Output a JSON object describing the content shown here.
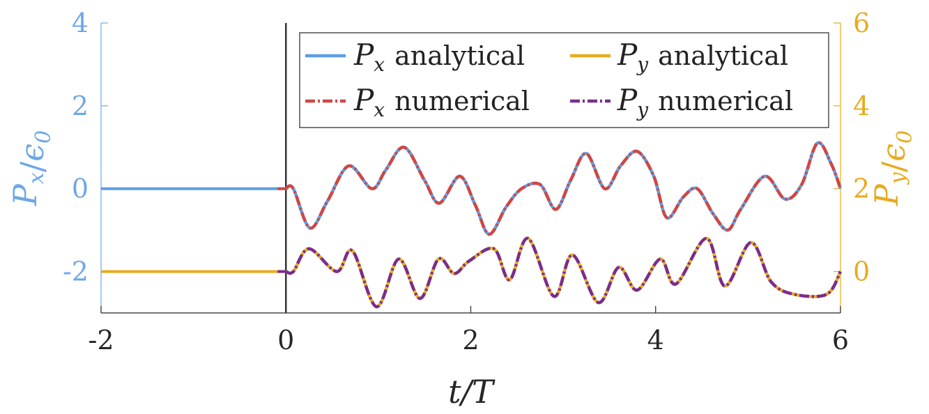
{
  "chart_data": {
    "type": "line",
    "colors": {
      "left_axis": "#6ea8e6",
      "right_axis": "#e8ab1f",
      "bottom_axis": "#262626",
      "px_analytical": "#5b9ee6",
      "px_numerical": "#cf4744",
      "py_analytical": "#e8ab1f",
      "py_numerical": "#7a2d8c",
      "marker_line": "#333333"
    },
    "x_axis": {
      "label": "t/T",
      "range": [
        -2,
        6
      ],
      "ticks": [
        -2,
        0,
        2,
        4,
        6
      ],
      "tick_labels": [
        "-2",
        "0",
        "2",
        "4",
        "6"
      ]
    },
    "y_left": {
      "label": "P_x/ϵ_0",
      "range": [
        -3,
        4
      ],
      "ticks": [
        -2,
        0,
        2,
        4
      ],
      "tick_labels": [
        "-2",
        "0",
        "2",
        "4"
      ]
    },
    "y_right": {
      "label": "P_y/ϵ_0",
      "range": [
        -1,
        6
      ],
      "ticks": [
        0,
        2,
        4,
        6
      ],
      "tick_labels": [
        "0",
        "2",
        "4",
        "6"
      ]
    },
    "vertical_line_x": 0,
    "legend": {
      "position": "top-right",
      "entries": [
        {
          "symbol": "P",
          "sub": "x",
          "text": "analytical",
          "style": "solid",
          "series": "px_analytical"
        },
        {
          "symbol": "P",
          "sub": "y",
          "text": "analytical",
          "style": "solid",
          "series": "py_analytical"
        },
        {
          "symbol": "P",
          "sub": "x",
          "text": "numerical",
          "style": "dashdot",
          "series": "px_numerical"
        },
        {
          "symbol": "P",
          "sub": "y",
          "text": "numerical",
          "style": "dashdot",
          "series": "py_numerical"
        }
      ]
    },
    "series": [
      {
        "key": "px",
        "axis": "left",
        "pre_value": 0,
        "x": [
          0,
          0.08,
          0.26,
          0.45,
          0.68,
          0.93,
          1.08,
          1.28,
          1.5,
          1.66,
          1.88,
          2.05,
          2.2,
          2.38,
          2.55,
          2.75,
          2.92,
          3.08,
          3.25,
          3.45,
          3.62,
          3.8,
          3.98,
          4.12,
          4.3,
          4.45,
          4.62,
          4.78,
          4.92,
          5.18,
          5.4,
          5.58,
          5.75,
          5.9,
          6.0
        ],
        "y": [
          0,
          0,
          -0.95,
          -0.3,
          0.55,
          0.0,
          0.45,
          1.0,
          0.2,
          -0.35,
          0.3,
          -0.4,
          -1.1,
          -0.45,
          0.0,
          0.1,
          -0.5,
          0.2,
          0.85,
          0.0,
          0.55,
          0.9,
          0.3,
          -0.7,
          -0.2,
          0.0,
          -0.6,
          -1.0,
          -0.5,
          0.3,
          -0.25,
          0.1,
          1.1,
          0.6,
          0.0
        ]
      },
      {
        "key": "py",
        "axis": "right",
        "pre_value": 0,
        "x": [
          0,
          0.08,
          0.25,
          0.55,
          0.72,
          0.98,
          1.22,
          1.45,
          1.65,
          1.82,
          1.98,
          2.25,
          2.42,
          2.62,
          2.9,
          3.1,
          3.38,
          3.6,
          3.8,
          4.05,
          4.22,
          4.55,
          4.75,
          5.03,
          5.25,
          5.5,
          5.85,
          6.0
        ],
        "y": [
          0,
          0,
          0.55,
          0.0,
          0.5,
          -0.85,
          0.3,
          -0.65,
          0.3,
          -0.05,
          0.25,
          0.55,
          -0.2,
          0.8,
          -0.6,
          0.4,
          -0.75,
          0.1,
          -0.45,
          0.3,
          -0.3,
          0.8,
          -0.35,
          0.7,
          -0.25,
          -0.55,
          -0.55,
          0.0
        ]
      }
    ]
  }
}
